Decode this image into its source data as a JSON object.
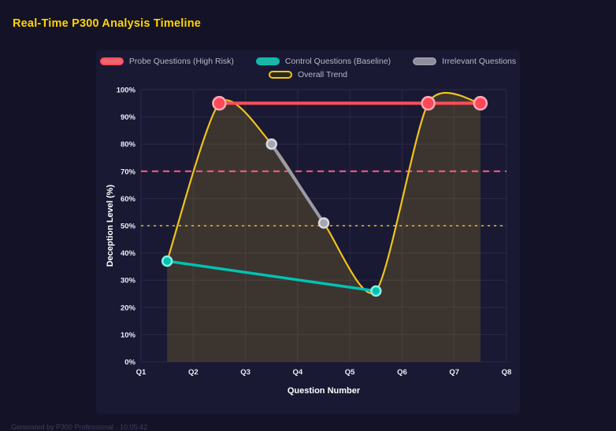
{
  "page": {
    "title": "Real-Time P300 Analysis Timeline",
    "footer": "Generated by P300 Professional · 10:05:42"
  },
  "chart_data": {
    "type": "line",
    "title": "Real-Time P300 Analysis Timeline",
    "xlabel": "Question Number",
    "ylabel": "Deception Level (%)",
    "x_ticks": [
      "Q1",
      "Q2",
      "Q3",
      "Q4",
      "Q5",
      "Q6",
      "Q7",
      "Q8"
    ],
    "x_range": [
      1,
      8
    ],
    "ylim": [
      0,
      100
    ],
    "y_tick_step": 10,
    "y_tick_suffix": "%",
    "grid": true,
    "legend_position": "top",
    "series": [
      {
        "name": "Probe Questions (High Risk)",
        "color": "#ff4d5a",
        "swatch_fill": "#ef666e",
        "point_fill": "#ff4757",
        "point_stroke": "#ffaab5",
        "point_radius": 8,
        "line_width": 4,
        "smooth": false,
        "points": [
          [
            2.5,
            95
          ],
          [
            6.5,
            95
          ],
          [
            7.5,
            95
          ]
        ]
      },
      {
        "name": "Control Questions (Baseline)",
        "color": "#00c2b2",
        "swatch_fill": "#21b1a7",
        "point_fill": "#00c2b2",
        "point_stroke": "#8beee5",
        "point_radius": 6,
        "line_width": 3.5,
        "smooth": false,
        "points": [
          [
            1.5,
            37
          ],
          [
            5.5,
            26
          ]
        ]
      },
      {
        "name": "Irrelevant Questions",
        "color": "#9b9ba6",
        "swatch_fill": "#8e8e99",
        "point_fill": "#a6a6b0",
        "point_stroke": "#d8d8e0",
        "point_radius": 6,
        "line_width": 4,
        "smooth": false,
        "points": [
          [
            3.5,
            80
          ],
          [
            4.5,
            51
          ]
        ]
      },
      {
        "name": "Overall Trend",
        "color": "#f0c419",
        "swatch_fill": "#2b2a14",
        "point_radius": 0,
        "line_width": 2.2,
        "smooth": true,
        "area_fill": "rgba(240,196,25,0.16)",
        "points": [
          [
            1.5,
            37
          ],
          [
            2.5,
            95
          ],
          [
            3.5,
            80
          ],
          [
            4.5,
            51
          ],
          [
            5.5,
            26
          ],
          [
            6.5,
            95
          ],
          [
            7.5,
            95
          ]
        ]
      }
    ],
    "thresholds": [
      {
        "label": "probe-threshold",
        "value": 70,
        "color": "#ff5c8a",
        "dash": "8 6",
        "width": 2
      },
      {
        "label": "baseline-threshold",
        "value": 50,
        "color": "#e8c21a",
        "dash": "3 5",
        "width": 1.6
      }
    ]
  }
}
